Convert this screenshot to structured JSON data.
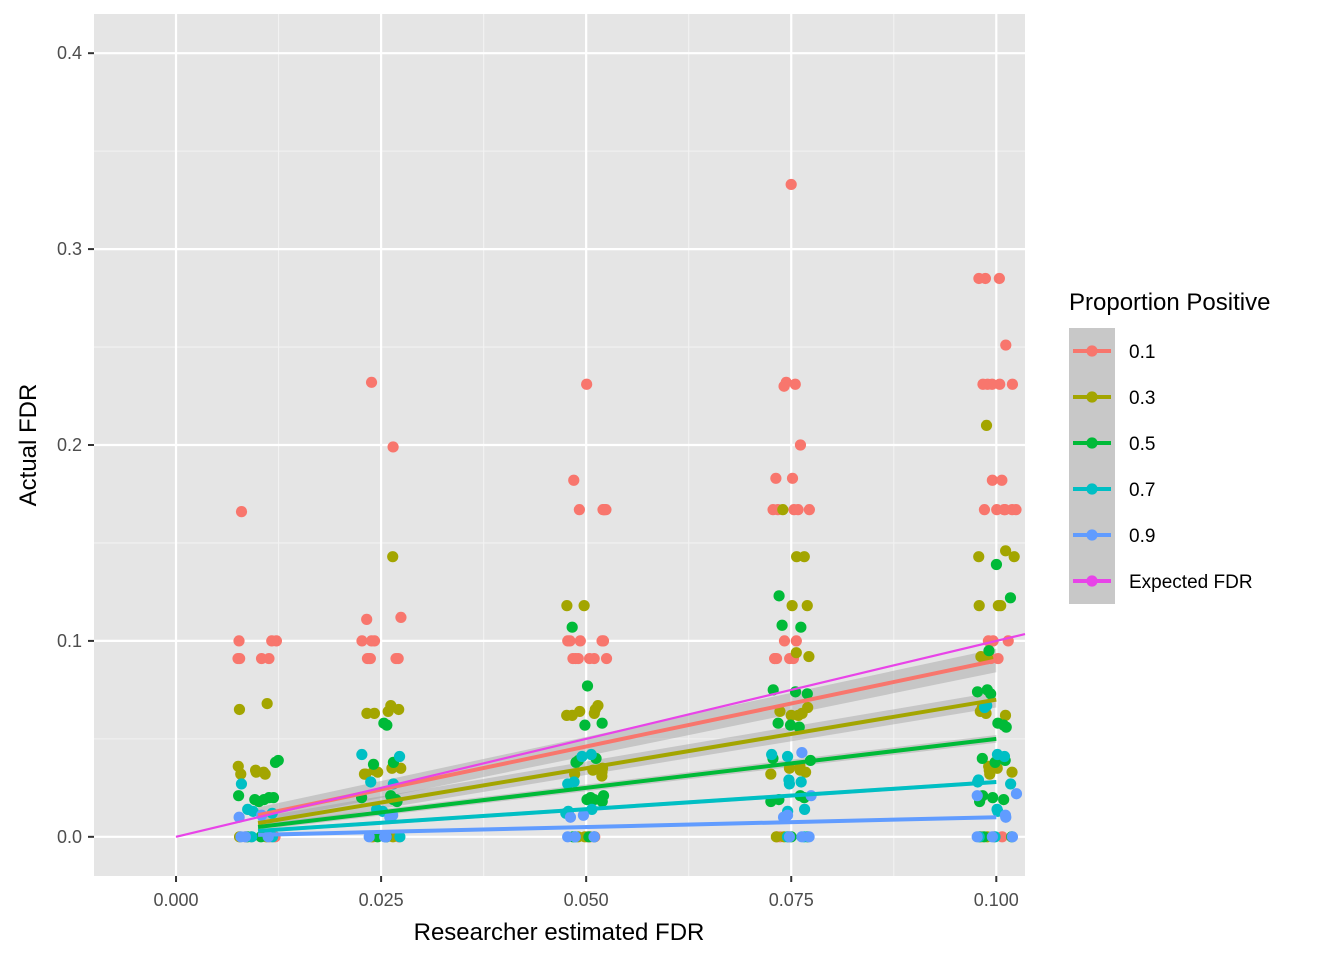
{
  "chart_data": {
    "type": "scatter",
    "title": "",
    "xlabel": "Researcher estimated FDR",
    "ylabel": "Actual FDR",
    "xlim": [
      -0.01,
      0.1035
    ],
    "ylim": [
      -0.02,
      0.42
    ],
    "x_ticks": [
      {
        "value": 0.0,
        "label": "0.000"
      },
      {
        "value": 0.025,
        "label": "0.025"
      },
      {
        "value": 0.05,
        "label": "0.050"
      },
      {
        "value": 0.075,
        "label": "0.075"
      },
      {
        "value": 0.1,
        "label": "0.100"
      }
    ],
    "y_ticks": [
      {
        "value": 0.0,
        "label": "0.0"
      },
      {
        "value": 0.1,
        "label": "0.1"
      },
      {
        "value": 0.2,
        "label": "0.2"
      },
      {
        "value": 0.3,
        "label": "0.3"
      },
      {
        "value": 0.4,
        "label": "0.4"
      }
    ],
    "x_minor": [
      0.0125,
      0.0375,
      0.0625,
      0.0875
    ],
    "y_minor": [
      0.05,
      0.15,
      0.25,
      0.35
    ],
    "grid": true,
    "panel_color": "#e5e5e5",
    "legend": {
      "title": "Proportion Positive",
      "placement": "right",
      "entries": [
        {
          "label": "0.1",
          "color": "#F8766D"
        },
        {
          "label": "0.3",
          "color": "#A3A500"
        },
        {
          "label": "0.5",
          "color": "#00BA38"
        },
        {
          "label": "0.7",
          "color": "#00BFC4"
        },
        {
          "label": "0.9",
          "color": "#619CFF"
        },
        {
          "label": "Expected FDR",
          "color": "#E844E8"
        }
      ]
    },
    "series": [
      {
        "name": "0.1",
        "color": "#F8766D",
        "trend": {
          "x": [
            0.01,
            0.1
          ],
          "y": [
            0.011,
            0.09
          ],
          "ci_band": [
            0.004,
            0.006
          ]
        },
        "points_by_x": [
          {
            "x": 0.01,
            "y": [
              0.166,
              0.1,
              0.1,
              0.1,
              0.091,
              0.091,
              0.091,
              0.091,
              0.0,
              0.0,
              0.0,
              0.0
            ]
          },
          {
            "x": 0.025,
            "y": [
              0.232,
              0.199,
              0.112,
              0.111,
              0.1,
              0.1,
              0.1,
              0.091,
              0.091,
              0.091,
              0.091,
              0.091,
              0.0,
              0.0,
              0.0,
              0.0
            ]
          },
          {
            "x": 0.05,
            "y": [
              0.231,
              0.182,
              0.167,
              0.167,
              0.167,
              0.167,
              0.167,
              0.1,
              0.1,
              0.1,
              0.1,
              0.1,
              0.091,
              0.091,
              0.091,
              0.091,
              0.091,
              0.091,
              0.0,
              0.0,
              0.0
            ]
          },
          {
            "x": 0.075,
            "y": [
              0.333,
              0.232,
              0.231,
              0.23,
              0.2,
              0.183,
              0.183,
              0.167,
              0.167,
              0.167,
              0.167,
              0.167,
              0.1,
              0.1,
              0.091,
              0.091,
              0.091,
              0.091,
              0.091,
              0.0,
              0.0,
              0.0
            ]
          },
          {
            "x": 0.1,
            "y": [
              0.285,
              0.285,
              0.285,
              0.251,
              0.231,
              0.231,
              0.231,
              0.231,
              0.231,
              0.182,
              0.182,
              0.167,
              0.167,
              0.167,
              0.167,
              0.167,
              0.167,
              0.1,
              0.1,
              0.1,
              0.091,
              0.091,
              0.091,
              0.091,
              0.0,
              0.0,
              0.0
            ]
          }
        ]
      },
      {
        "name": "0.3",
        "color": "#A3A500",
        "trend": {
          "x": [
            0.01,
            0.1
          ],
          "y": [
            0.007,
            0.07
          ],
          "ci_band": [
            0.003,
            0.004
          ]
        },
        "points_by_x": [
          {
            "x": 0.01,
            "y": [
              0.068,
              0.065,
              0.036,
              0.034,
              0.033,
              0.033,
              0.032,
              0.032,
              0.0,
              0.0
            ]
          },
          {
            "x": 0.025,
            "y": [
              0.143,
              0.067,
              0.065,
              0.064,
              0.063,
              0.063,
              0.035,
              0.035,
              0.034,
              0.033,
              0.032,
              0.032,
              0.0,
              0.0
            ]
          },
          {
            "x": 0.05,
            "y": [
              0.118,
              0.118,
              0.067,
              0.065,
              0.064,
              0.063,
              0.062,
              0.062,
              0.035,
              0.034,
              0.033,
              0.032,
              0.031,
              0.0,
              0.0
            ]
          },
          {
            "x": 0.075,
            "y": [
              0.167,
              0.143,
              0.143,
              0.118,
              0.118,
              0.094,
              0.092,
              0.066,
              0.064,
              0.063,
              0.062,
              0.062,
              0.036,
              0.035,
              0.034,
              0.033,
              0.032,
              0.0,
              0.0
            ]
          },
          {
            "x": 0.1,
            "y": [
              0.21,
              0.146,
              0.143,
              0.143,
              0.118,
              0.118,
              0.118,
              0.092,
              0.091,
              0.066,
              0.064,
              0.063,
              0.062,
              0.036,
              0.035,
              0.034,
              0.033,
              0.032,
              0.0,
              0.0
            ]
          }
        ]
      },
      {
        "name": "0.5",
        "color": "#00BA38",
        "trend": {
          "x": [
            0.01,
            0.1
          ],
          "y": [
            0.005,
            0.05
          ],
          "ci_band": [
            0.0015,
            0.002
          ]
        },
        "points_by_x": [
          {
            "x": 0.01,
            "y": [
              0.039,
              0.038,
              0.021,
              0.02,
              0.02,
              0.019,
              0.019,
              0.018,
              0.0,
              0.0
            ]
          },
          {
            "x": 0.025,
            "y": [
              0.058,
              0.057,
              0.038,
              0.037,
              0.021,
              0.02,
              0.019,
              0.019,
              0.018,
              0.0,
              0.0
            ]
          },
          {
            "x": 0.05,
            "y": [
              0.107,
              0.077,
              0.058,
              0.057,
              0.04,
              0.039,
              0.038,
              0.021,
              0.02,
              0.019,
              0.019,
              0.018,
              0.0,
              0.0
            ]
          },
          {
            "x": 0.075,
            "y": [
              0.123,
              0.108,
              0.107,
              0.075,
              0.074,
              0.073,
              0.058,
              0.057,
              0.056,
              0.04,
              0.039,
              0.021,
              0.02,
              0.019,
              0.018,
              0.0,
              0.0
            ]
          },
          {
            "x": 0.1,
            "y": [
              0.139,
              0.122,
              0.095,
              0.075,
              0.074,
              0.073,
              0.058,
              0.057,
              0.056,
              0.04,
              0.039,
              0.038,
              0.021,
              0.02,
              0.019,
              0.018,
              0.0,
              0.0
            ]
          }
        ]
      },
      {
        "name": "0.7",
        "color": "#00BFC4",
        "trend": {
          "x": [
            0.01,
            0.1
          ],
          "y": [
            0.003,
            0.028
          ],
          "ci_band": [
            0.001,
            0.001
          ]
        },
        "points_by_x": [
          {
            "x": 0.01,
            "y": [
              0.027,
              0.014,
              0.013,
              0.012,
              0.0,
              0.0
            ]
          },
          {
            "x": 0.025,
            "y": [
              0.042,
              0.041,
              0.028,
              0.027,
              0.014,
              0.013,
              0.0,
              0.0
            ]
          },
          {
            "x": 0.05,
            "y": [
              0.042,
              0.041,
              0.028,
              0.027,
              0.014,
              0.013,
              0.012,
              0.0,
              0.0
            ]
          },
          {
            "x": 0.075,
            "y": [
              0.042,
              0.041,
              0.029,
              0.028,
              0.027,
              0.014,
              0.013,
              0.0,
              0.0
            ]
          },
          {
            "x": 0.1,
            "y": [
              0.067,
              0.066,
              0.042,
              0.041,
              0.029,
              0.028,
              0.027,
              0.014,
              0.013,
              0.0,
              0.0
            ]
          }
        ]
      },
      {
        "name": "0.9",
        "color": "#619CFF",
        "trend": {
          "x": [
            0.01,
            0.1
          ],
          "y": [
            0.001,
            0.01
          ],
          "ci_band": [
            0.0006,
            0.0006
          ]
        },
        "points_by_x": [
          {
            "x": 0.01,
            "y": [
              0.011,
              0.01,
              0.0,
              0.0,
              0.0
            ]
          },
          {
            "x": 0.025,
            "y": [
              0.011,
              0.01,
              0.0,
              0.0,
              0.0
            ]
          },
          {
            "x": 0.05,
            "y": [
              0.011,
              0.01,
              0.0,
              0.0,
              0.0
            ]
          },
          {
            "x": 0.075,
            "y": [
              0.043,
              0.021,
              0.011,
              0.01,
              0.0,
              0.0,
              0.0
            ]
          },
          {
            "x": 0.1,
            "y": [
              0.022,
              0.021,
              0.011,
              0.01,
              0.0,
              0.0,
              0.0
            ]
          }
        ]
      },
      {
        "name": "Expected FDR",
        "color": "#E844E8",
        "line": {
          "x": [
            0.0,
            0.1035
          ],
          "y": [
            0.0,
            0.1035
          ]
        }
      }
    ]
  }
}
